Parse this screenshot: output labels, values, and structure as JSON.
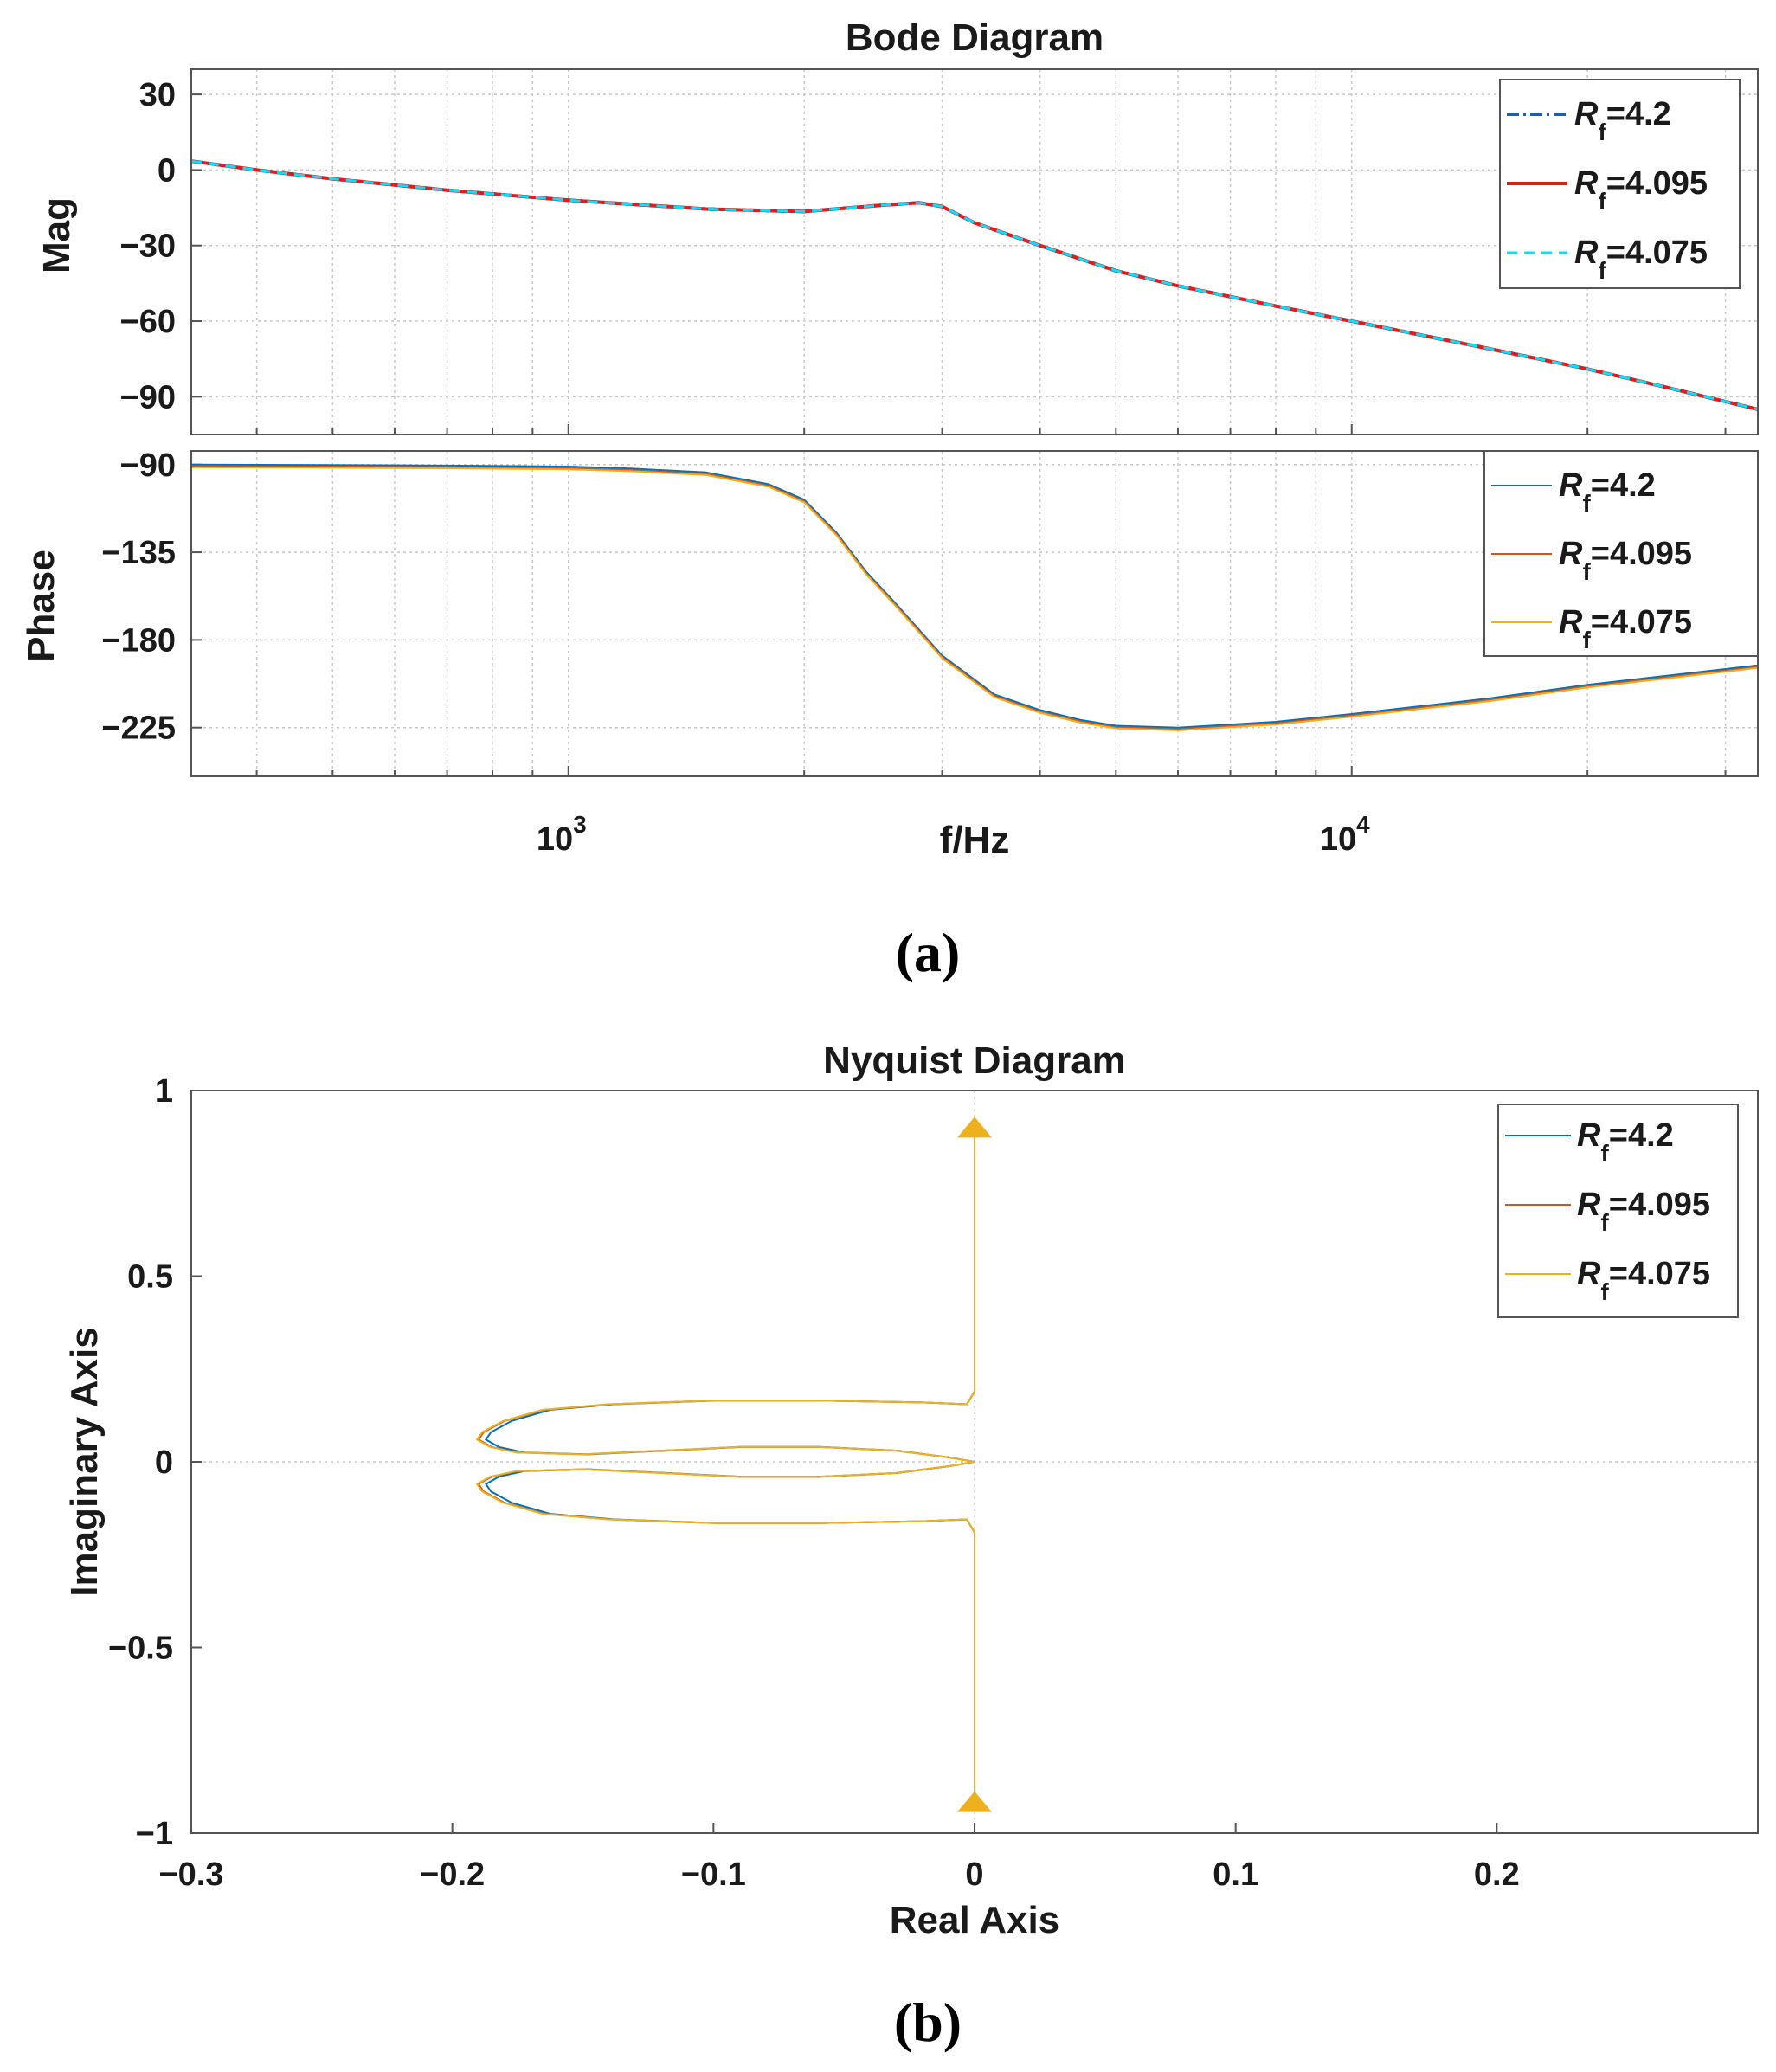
{
  "captions": {
    "a": "(a)",
    "b": "(b)"
  },
  "chart_data": [
    {
      "type": "line",
      "title": "Bode Diagram",
      "xlabel": "f/Hz",
      "xscale": "log",
      "xlim": [
        330,
        33000
      ],
      "x_tick_labels": [
        {
          "base": "10",
          "exp": "3",
          "value": 1000
        },
        {
          "base": "10",
          "exp": "4",
          "value": 10000
        }
      ],
      "panels": [
        {
          "name": "magnitude",
          "ylabel": "Mag",
          "ylim": [
            -105,
            40
          ],
          "yticks": [
            30,
            0,
            -30,
            -60,
            -90
          ],
          "ytick_labels": [
            "30",
            "0",
            "−30",
            "−60",
            "−90"
          ],
          "legend_position": "top-right",
          "series": [
            {
              "name_main": "R",
              "name_sub": "f",
              "name_value": "=4.2",
              "color": "#1f5fa8",
              "style": "dashdot",
              "offset": 0
            },
            {
              "name_main": "R",
              "name_sub": "f",
              "name_value": "=4.095",
              "color": "#e41a1c",
              "style": "solid",
              "offset": 0
            },
            {
              "name_main": "R",
              "name_sub": "f",
              "name_value": "=4.075",
              "color": "#00e5ff",
              "style": "dashed",
              "offset": 0
            }
          ],
          "x": [
            330,
            400,
            500,
            700,
            1000,
            1500,
            2000,
            2500,
            2800,
            3000,
            3300,
            4000,
            5000,
            6000,
            8000,
            10000,
            15000,
            20000,
            25000,
            33000
          ],
          "y": [
            3.5,
            0,
            -3.5,
            -8,
            -12,
            -15.5,
            -16.5,
            -14,
            -13,
            -14.5,
            -21,
            -30,
            -40,
            -46,
            -54,
            -60,
            -71,
            -79,
            -86,
            -95
          ]
        },
        {
          "name": "phase",
          "ylabel": "Phase",
          "ylim": [
            -250,
            -83
          ],
          "yticks": [
            -90,
            -135,
            -180,
            -225
          ],
          "ytick_labels": [
            "−90",
            "−135",
            "−180",
            "−225"
          ],
          "legend_position": "top-right",
          "series": [
            {
              "name_main": "R",
              "name_sub": "f",
              "name_value": "=4.2",
              "color": "#0072bd",
              "style": "thin",
              "offset": 0
            },
            {
              "name_main": "R",
              "name_sub": "f",
              "name_value": "=4.095",
              "color": "#d95319",
              "style": "thin",
              "offset": -0.8
            },
            {
              "name_main": "R",
              "name_sub": "f",
              "name_value": "=4.075",
              "color": "#edb120",
              "style": "thin",
              "offset": -1.4
            }
          ],
          "x": [
            330,
            500,
            700,
            1000,
            1200,
            1500,
            1800,
            2000,
            2200,
            2400,
            2600,
            3000,
            3500,
            4000,
            4500,
            5000,
            6000,
            8000,
            10000,
            15000,
            20000,
            33000
          ],
          "y": [
            -90,
            -90.2,
            -90.5,
            -91,
            -92,
            -94,
            -100,
            -108,
            -125,
            -145,
            -160,
            -188,
            -208,
            -216,
            -221,
            -224,
            -225,
            -222,
            -218,
            -210,
            -203,
            -193
          ]
        }
      ]
    },
    {
      "type": "line",
      "title": "Nyquist Diagram",
      "xlabel": "Real Axis",
      "ylabel": "Imaginary Axis",
      "xlim": [
        -0.3,
        0.3
      ],
      "ylim": [
        -1,
        1
      ],
      "xticks": [
        -0.3,
        -0.2,
        -0.1,
        0,
        0.1,
        0.2
      ],
      "xtick_labels": [
        "−0.3",
        "−0.2",
        "−0.1",
        "0",
        "0.1",
        "0.2"
      ],
      "yticks": [
        1,
        0.5,
        0,
        -0.5,
        -1
      ],
      "ytick_labels": [
        "1",
        "0.5",
        "0",
        "−0.5",
        "−1"
      ],
      "legend_position": "top-right",
      "series": [
        {
          "name_main": "R",
          "name_sub": "f",
          "name_value": "=4.2",
          "color": "#0072bd",
          "scale": 0.985
        },
        {
          "name_main": "R",
          "name_sub": "f",
          "name_value": "=4.095",
          "color": "#d95319",
          "scale": 1.0
        },
        {
          "name_main": "R",
          "name_sub": "f",
          "name_value": "=4.075",
          "color": "#edb120",
          "scale": 1.003
        }
      ],
      "upper_branch": {
        "x": [
          0,
          0,
          0,
          0,
          0,
          -0.003,
          -0.02,
          -0.06,
          -0.1,
          -0.14,
          -0.165,
          -0.18,
          -0.188,
          -0.19,
          -0.185,
          -0.175,
          -0.15,
          -0.12,
          -0.09,
          -0.06,
          -0.03,
          -0.01,
          0
        ],
        "y": [
          0.92,
          0.6,
          0.4,
          0.25,
          0.19,
          0.155,
          0.16,
          0.165,
          0.165,
          0.155,
          0.14,
          0.11,
          0.08,
          0.06,
          0.04,
          0.025,
          0.02,
          0.03,
          0.04,
          0.04,
          0.03,
          0.012,
          0
        ]
      }
    }
  ]
}
